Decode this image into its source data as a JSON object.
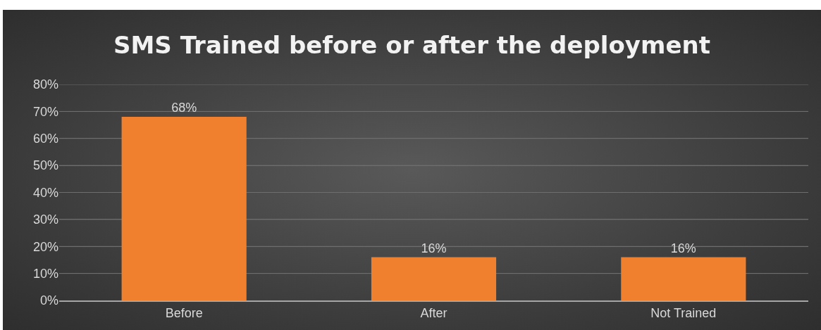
{
  "chart_data": {
    "type": "bar",
    "title": "SMS Trained before or after the deployment",
    "categories": [
      "Before",
      "After",
      "Not Trained"
    ],
    "values": [
      68,
      16,
      16
    ],
    "value_labels": [
      "68%",
      "16%",
      "16%"
    ],
    "color": "#f07f2e",
    "ylim": [
      0,
      80
    ],
    "yticks": [
      {
        "value": 0,
        "label": "0%"
      },
      {
        "value": 10,
        "label": "10%"
      },
      {
        "value": 20,
        "label": "20%"
      },
      {
        "value": 30,
        "label": "30%"
      },
      {
        "value": 40,
        "label": "40%"
      },
      {
        "value": 50,
        "label": "50%"
      },
      {
        "value": 60,
        "label": "60%"
      },
      {
        "value": 70,
        "label": "70%"
      },
      {
        "value": 80,
        "label": "80%"
      }
    ],
    "grid": "y"
  }
}
